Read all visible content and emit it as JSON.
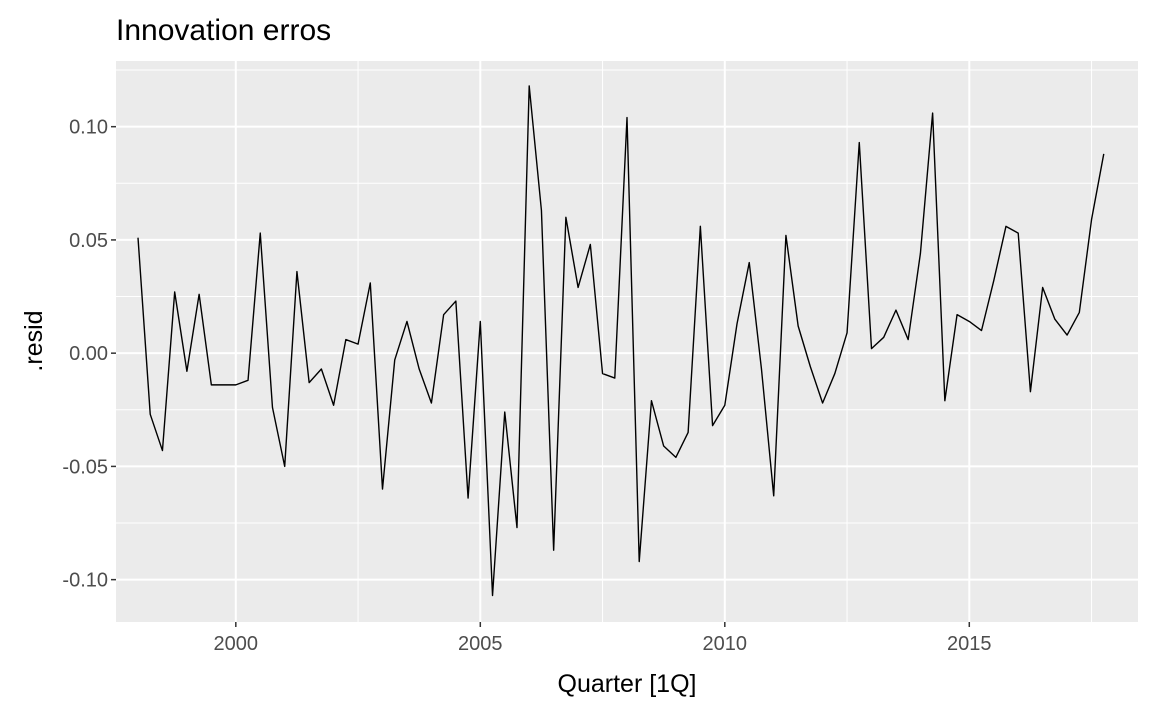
{
  "chart_data": {
    "type": "line",
    "title": "Innovation erros",
    "xlabel": "Quarter [1Q]",
    "ylabel": ".resid",
    "xlim": [
      1997.55,
      2018.45
    ],
    "ylim": [
      -0.1187,
      0.129
    ],
    "x_ticks": [
      2000,
      2005,
      2010,
      2015
    ],
    "x_tick_labels": [
      "2000",
      "2005",
      "2010",
      "2015"
    ],
    "y_ticks": [
      -0.1,
      -0.05,
      0.0,
      0.05,
      0.1
    ],
    "y_tick_labels": [
      "-0.10",
      "-0.05",
      "0.00",
      "0.05",
      "0.10"
    ],
    "grid": true,
    "panel_background": "#ebebeb",
    "grid_color": "#ffffff",
    "line_color": "#000000",
    "series": [
      {
        "x_start": 1998.0,
        "x_step": 0.25,
        "values": [
          0.051,
          -0.027,
          -0.043,
          0.027,
          -0.008,
          0.026,
          -0.014,
          -0.014,
          -0.014,
          -0.012,
          0.053,
          -0.024,
          -0.05,
          0.036,
          -0.013,
          -0.007,
          -0.023,
          0.006,
          0.004,
          0.031,
          -0.06,
          -0.003,
          0.014,
          -0.007,
          -0.022,
          0.017,
          0.023,
          -0.064,
          0.014,
          -0.107,
          -0.026,
          -0.077,
          0.118,
          0.063,
          -0.087,
          0.06,
          0.029,
          0.048,
          -0.009,
          -0.011,
          0.104,
          -0.092,
          -0.021,
          -0.041,
          -0.046,
          -0.035,
          0.056,
          -0.032,
          -0.023,
          0.013,
          0.04,
          -0.007,
          -0.063,
          0.052,
          0.012,
          -0.006,
          -0.022,
          -0.009,
          0.009,
          0.093,
          0.002,
          0.007,
          0.019,
          0.006,
          0.044,
          0.106,
          -0.021,
          0.017,
          0.014,
          0.01,
          0.032,
          0.056,
          0.053,
          -0.017,
          0.029,
          0.015,
          0.008,
          0.018,
          0.059,
          0.088
        ]
      }
    ]
  }
}
